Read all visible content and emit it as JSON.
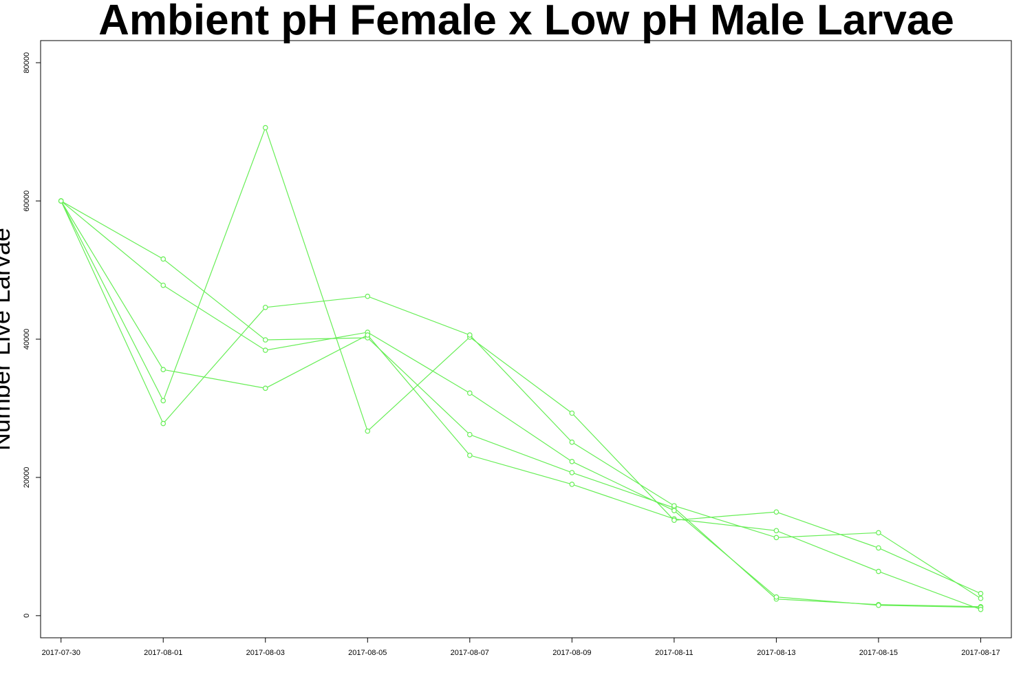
{
  "chart_data": {
    "type": "line",
    "title": "Ambient pH Female x Low pH Male Larvae",
    "xlabel": "",
    "ylabel": "Number Live Larvae",
    "x": [
      "2017-07-30",
      "2017-08-01",
      "2017-08-03",
      "2017-08-05",
      "2017-08-07",
      "2017-08-09",
      "2017-08-11",
      "2017-08-13",
      "2017-08-15",
      "2017-08-17"
    ],
    "xticks": [
      "2017-07-30",
      "2017-08-01",
      "2017-08-03",
      "2017-08-05",
      "2017-08-07",
      "2017-08-09",
      "2017-08-11",
      "2017-08-13",
      "2017-08-15",
      "2017-08-17"
    ],
    "yticks": [
      "0",
      "20000",
      "40000",
      "60000",
      "80000"
    ],
    "xlim": [
      "2017-07-29.6",
      "2017-08-17.6"
    ],
    "ylim": [
      -3200,
      83200
    ],
    "grid": false,
    "legend": "none",
    "color": "#66ee55",
    "marker": "open-circle",
    "series": [
      {
        "values": [
          60000,
          51600,
          39900,
          40200,
          26200,
          20700,
          15600,
          2400,
          1600,
          1300
        ]
      },
      {
        "values": [
          60000,
          47800,
          38400,
          41000,
          32200,
          22300,
          15200,
          2700,
          1500,
          1200
        ]
      },
      {
        "values": [
          60000,
          35600,
          32900,
          40600,
          23200,
          19000,
          14000,
          12300,
          6400,
          900
        ]
      },
      {
        "values": [
          60000,
          31100,
          70600,
          26700,
          40300,
          29300,
          13800,
          15000,
          9800,
          3200
        ]
      },
      {
        "values": [
          60000,
          27800,
          44600,
          46200,
          40600,
          25100,
          15900,
          11300,
          12000,
          2500
        ]
      }
    ]
  }
}
